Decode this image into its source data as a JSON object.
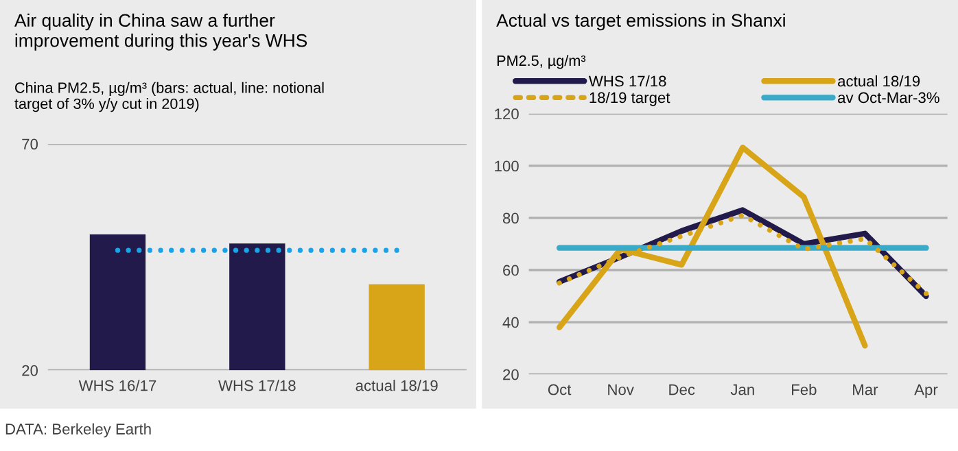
{
  "chart_data": [
    {
      "type": "bar",
      "title": "Air quality in China saw a further\nimprovement during this year's WHS",
      "ylabel": "China PM2.5, µg/m³ (bars: actual, line: notional\ntarget of 3% y/y cut in 2019)",
      "categories": [
        "WHS 16/17",
        "WHS 17/18",
        "actual 18/19"
      ],
      "ylim": [
        20,
        70
      ],
      "yticks": [
        20,
        70
      ],
      "grid": "y",
      "legend": false,
      "series": [
        {
          "type": "bar",
          "values": [
            50,
            48,
            39
          ],
          "colors": [
            "#211a4a",
            "#211a4a",
            "#d8a519"
          ]
        },
        {
          "type": "line",
          "values": [
            46.5,
            46.5,
            46.5
          ],
          "color": "#1aa3e8",
          "line_style": "dotted"
        }
      ],
      "annotations": [
        "DATA: Berkeley Earth"
      ]
    },
    {
      "type": "line",
      "title": "Actual vs target emissions in Shanxi",
      "ylabel": "PM2.5, µg/m³",
      "categories": [
        "Oct",
        "Nov",
        "Dec",
        "Jan",
        "Feb",
        "Mar",
        "Apr"
      ],
      "ylim": [
        20,
        120
      ],
      "yticks": [
        20,
        40,
        60,
        80,
        100,
        120
      ],
      "grid": "y",
      "legend": "top",
      "marker": "none",
      "series": [
        {
          "name": "WHS 17/18",
          "color": "#211a4a",
          "values": [
            55.5,
            65,
            75,
            83,
            70,
            74,
            50
          ],
          "line_style": "solid"
        },
        {
          "name": "actual 18/19",
          "color": "#d8a519",
          "values": [
            38,
            68,
            62,
            107,
            88,
            31,
            null
          ],
          "line_style": "solid"
        },
        {
          "name": "18/19 target",
          "color": "#d8a519",
          "values": [
            55,
            65,
            73,
            81,
            68,
            72,
            51
          ],
          "line_style": "dotted"
        },
        {
          "name": "av Oct-Mar-3%",
          "color": "#3aaac8",
          "values": [
            68.5,
            68.5,
            68.5,
            68.5,
            68.5,
            68.5,
            68.5
          ],
          "line_style": "solid"
        }
      ]
    }
  ]
}
